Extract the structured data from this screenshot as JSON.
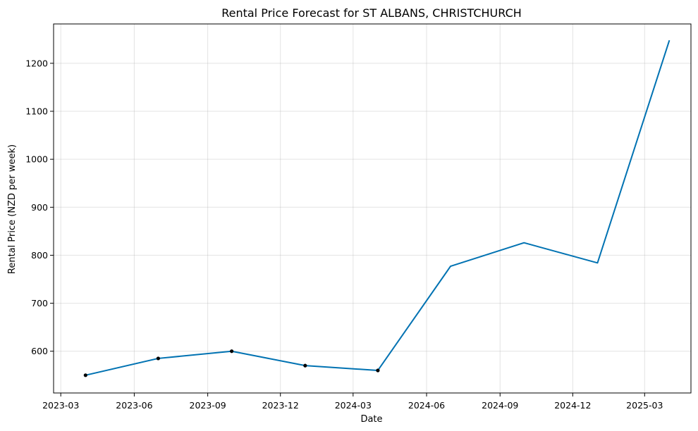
{
  "chart_data": {
    "type": "line",
    "title": "Rental Price Forecast for ST ALBANS, CHRISTCHURCH",
    "xlabel": "Date",
    "ylabel": "Rental Price (NZD per week)",
    "x_ticks": [
      "2023-03",
      "2023-06",
      "2023-09",
      "2023-12",
      "2024-03",
      "2024-06",
      "2024-09",
      "2024-12",
      "2025-03"
    ],
    "y_ticks": [
      600,
      700,
      800,
      900,
      1000,
      1100,
      1200
    ],
    "xlim": [
      "2023-02-20",
      "2025-04-28"
    ],
    "ylim": [
      513,
      1282
    ],
    "grid": true,
    "series": [
      {
        "line_color": "#0072b2",
        "values": [
          {
            "x": "2023-04-01",
            "y": 550
          },
          {
            "x": "2023-07-01",
            "y": 585
          },
          {
            "x": "2023-10-01",
            "y": 600
          },
          {
            "x": "2024-01-01",
            "y": 570
          },
          {
            "x": "2024-04-01",
            "y": 560
          },
          {
            "x": "2024-07-01",
            "y": 777
          },
          {
            "x": "2024-10-01",
            "y": 826
          },
          {
            "x": "2025-01-01",
            "y": 784
          },
          {
            "x": "2025-04-01",
            "y": 1248
          }
        ]
      }
    ],
    "observed_points": [
      {
        "x": "2023-04-01",
        "y": 550
      },
      {
        "x": "2023-07-01",
        "y": 585
      },
      {
        "x": "2023-10-01",
        "y": 600
      },
      {
        "x": "2024-01-01",
        "y": 570
      },
      {
        "x": "2024-04-01",
        "y": 560
      }
    ],
    "point_color": "#000000"
  }
}
